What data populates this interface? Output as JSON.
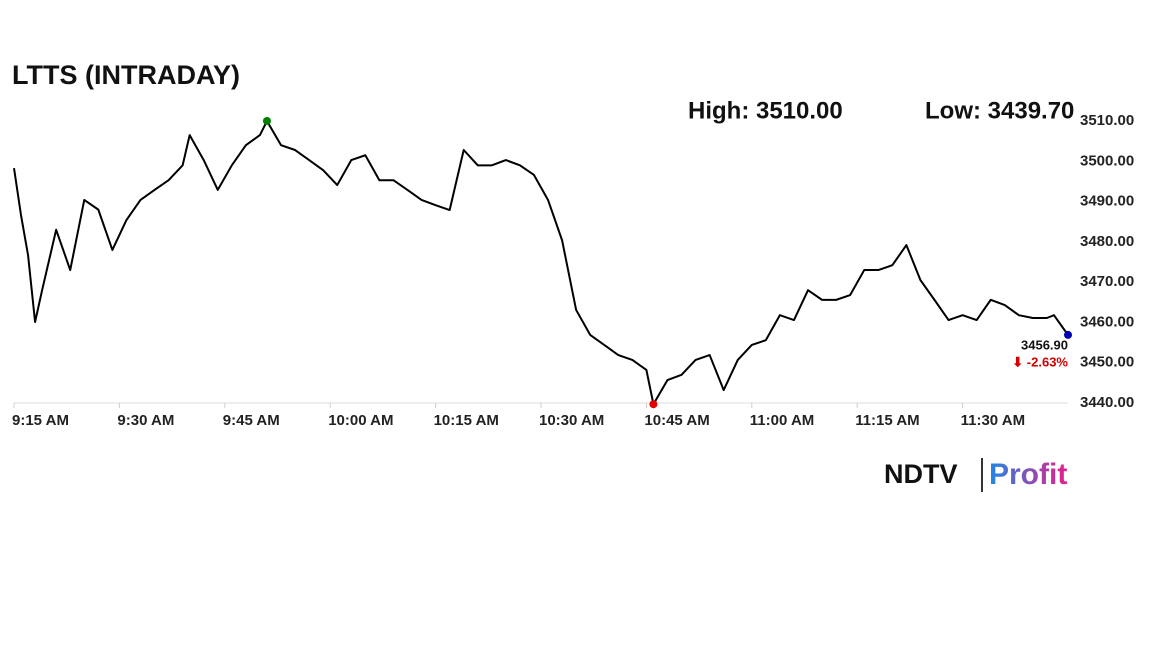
{
  "chart_data": {
    "type": "line",
    "title": "LTTS (INTRADAY)",
    "high_label": "High: 3510.00",
    "low_label": "Low: 3439.70",
    "last_label": "3456.90",
    "change_label": "⬇ -2.63%",
    "logo": {
      "left": "NDTV",
      "right": "Profit"
    },
    "x": [
      "9:15 AM",
      "9:16 AM",
      "9:17 AM",
      "9:18 AM",
      "9:19 AM",
      "9:21 AM",
      "9:23 AM",
      "9:25 AM",
      "9:27 AM",
      "9:29 AM",
      "9:31 AM",
      "9:33 AM",
      "9:35 AM",
      "9:37 AM",
      "9:39 AM",
      "9:40 AM",
      "9:42 AM",
      "9:44 AM",
      "9:46 AM",
      "9:48 AM",
      "9:50 AM",
      "9:51 AM",
      "9:53 AM",
      "9:55 AM",
      "9:57 AM",
      "9:59 AM",
      "10:01 AM",
      "10:03 AM",
      "10:05 AM",
      "10:07 AM",
      "10:09 AM",
      "10:11 AM",
      "10:13 AM",
      "10:15 AM",
      "10:17 AM",
      "10:19 AM",
      "10:21 AM",
      "10:23 AM",
      "10:25 AM",
      "10:27 AM",
      "10:29 AM",
      "10:31 AM",
      "10:33 AM",
      "10:35 AM",
      "10:37 AM",
      "10:39 AM",
      "10:41 AM",
      "10:43 AM",
      "10:45 AM",
      "10:46 AM",
      "10:48 AM",
      "10:50 AM",
      "10:52 AM",
      "10:54 AM",
      "10:56 AM",
      "10:58 AM",
      "11:00 AM",
      "11:02 AM",
      "11:04 AM",
      "11:06 AM",
      "11:08 AM",
      "11:10 AM",
      "11:12 AM",
      "11:14 AM",
      "11:16 AM",
      "11:18 AM",
      "11:20 AM",
      "11:22 AM",
      "11:24 AM",
      "11:26 AM",
      "11:28 AM",
      "11:30 AM",
      "11:32 AM",
      "11:34 AM",
      "11:36 AM",
      "11:38 AM",
      "11:40 AM",
      "11:42 AM",
      "11:43 AM",
      "11:45 AM"
    ],
    "series": [
      {
        "color": "#000000",
        "values": [
          3498.3,
          3486.6,
          3476.7,
          3460.1,
          3468,
          3483,
          3473,
          3490.4,
          3488,
          3478,
          3485.4,
          3490.4,
          3492.9,
          3495.3,
          3499,
          3506.5,
          3500.3,
          3492.9,
          3499,
          3504,
          3506.5,
          3510,
          3504,
          3502.8,
          3500.3,
          3497.8,
          3494.1,
          3500.3,
          3501.5,
          3495.3,
          3495.3,
          3492.9,
          3490.4,
          3489.1,
          3487.9,
          3502.8,
          3499,
          3499,
          3500.3,
          3499,
          3496.6,
          3490.4,
          3480.4,
          3463.1,
          3456.9,
          3454.4,
          3451.9,
          3450.7,
          3448.2,
          3439.7,
          3445.7,
          3447,
          3450.7,
          3451.9,
          3443.2,
          3450.7,
          3454.4,
          3455.6,
          3461.8,
          3460.6,
          3468,
          3465.6,
          3465.6,
          3466.8,
          3473,
          3473,
          3474.2,
          3479.2,
          3470.5,
          3465.6,
          3460.6,
          3461.8,
          3460.6,
          3465.6,
          3464.3,
          3461.8,
          3461.1,
          3461.1,
          3461.8,
          3456.9
        ]
      }
    ],
    "high_color": "#008000",
    "low_color": "#e00000",
    "last_color": "#0000b0",
    "change_color": "#d00000",
    "xlim": [
      "9:15 AM",
      "11:45 AM"
    ],
    "xticks": [
      "9:15 AM",
      "9:30 AM",
      "9:45 AM",
      "10:00 AM",
      "10:15 AM",
      "10:30 AM",
      "10:45 AM",
      "11:00 AM",
      "11:15 AM",
      "11:30 AM"
    ],
    "ylim": [
      3440,
      3510
    ],
    "yticks": [
      {
        "value": 3440,
        "label": "3440.00"
      },
      {
        "value": 3450,
        "label": "3450.00"
      },
      {
        "value": 3460,
        "label": "3460.00"
      },
      {
        "value": 3470,
        "label": "3470.00"
      },
      {
        "value": 3480,
        "label": "3480.00"
      },
      {
        "value": 3490,
        "label": "3490.00"
      },
      {
        "value": 3500,
        "label": "3500.00"
      },
      {
        "value": 3510,
        "label": "3510.00"
      }
    ],
    "grid": false
  }
}
